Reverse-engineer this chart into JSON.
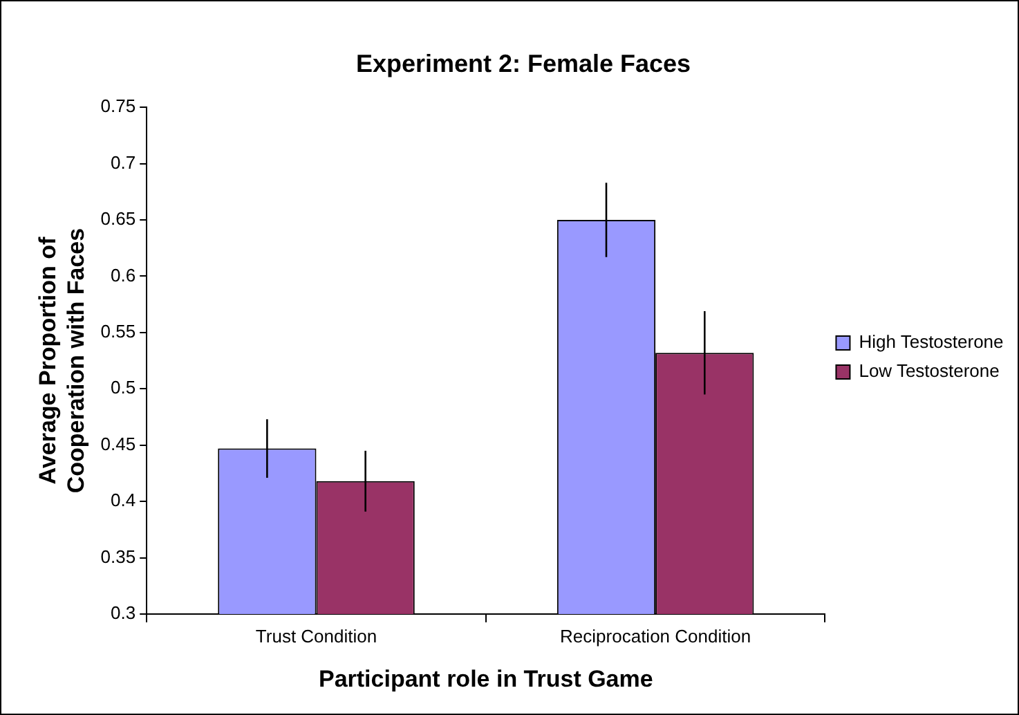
{
  "chart_data": {
    "type": "bar",
    "title": "Experiment 2: Female Faces",
    "xlabel": "Participant role in Trust Game",
    "ylabel": "Average Proportion of Cooperation with Faces",
    "categories": [
      "Trust Condition",
      "Reciprocation Condition"
    ],
    "series": [
      {
        "name": "High Testosterone",
        "color": "#9999ff",
        "values": [
          0.447,
          0.65
        ],
        "errors": [
          0.026,
          0.033
        ]
      },
      {
        "name": "Low Testosterone",
        "color": "#993366",
        "values": [
          0.418,
          0.532
        ],
        "errors": [
          0.027,
          0.037
        ]
      }
    ],
    "ylim": [
      0.3,
      0.75
    ],
    "yticks": [
      0.3,
      0.35,
      0.4,
      0.45,
      0.5,
      0.55,
      0.6,
      0.65,
      0.7,
      0.75
    ],
    "grid": false,
    "legend": "right"
  }
}
